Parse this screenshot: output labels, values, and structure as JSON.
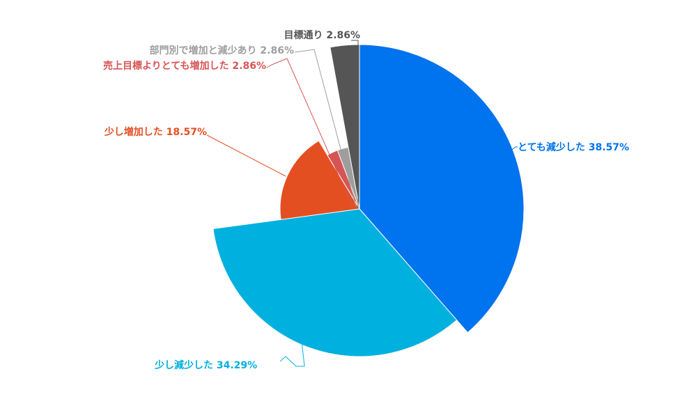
{
  "chart_data": {
    "type": "pie",
    "variant": "variable-radius",
    "title": "",
    "slices": [
      {
        "label": "とても減少した 38.57%",
        "name": "とても減少した",
        "percent": 38.57,
        "color": "#0073ee"
      },
      {
        "label": "少し減少した 34.29%",
        "name": "少し減少した",
        "percent": 34.29,
        "color": "#00b0df"
      },
      {
        "label": "少し増加した 18.57%",
        "name": "少し増加した",
        "percent": 18.57,
        "color": "#e44f22"
      },
      {
        "label": "売上目標よりとても増加した 2.86%",
        "name": "売上目標よりとても増加した",
        "percent": 2.86,
        "color": "#d75454"
      },
      {
        "label": "部門別で増加と減少あり 2.86%",
        "name": "部門別で増加と減少あり",
        "percent": 2.86,
        "color": "#9e9e9e"
      },
      {
        "label": "目標通り 2.86%",
        "name": "目標通り",
        "percent": 2.86,
        "color": "#555555"
      }
    ]
  }
}
